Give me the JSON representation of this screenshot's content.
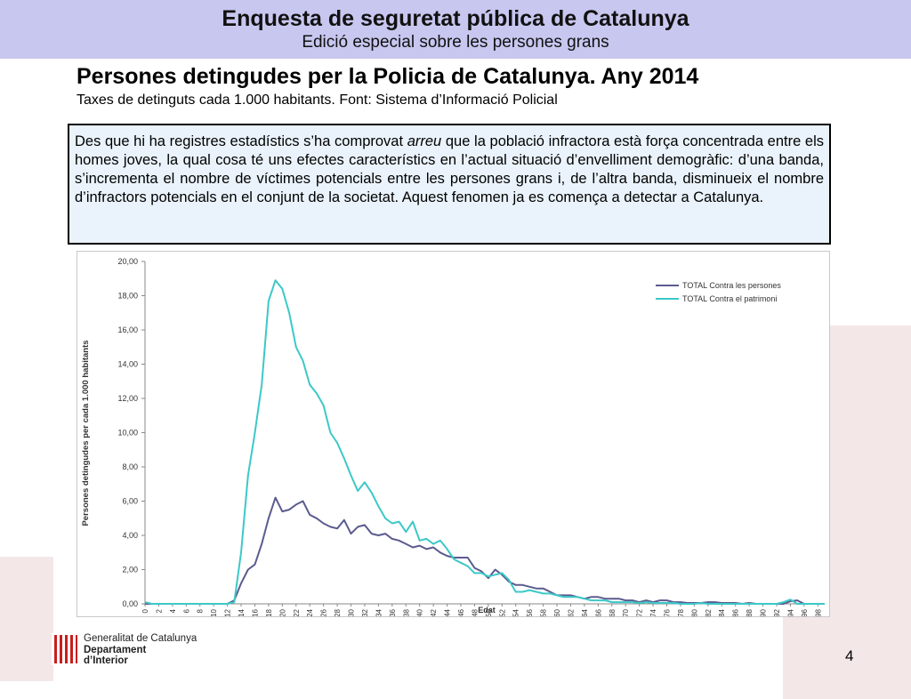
{
  "header": {
    "title": "Enquesta de seguretat pública de Catalunya",
    "subtitle": "Edició especial sobre les persones grans"
  },
  "slide": {
    "title": "Persones detingudes per la Policia de Catalunya. Any 2014",
    "subtitle": "Taxes de detinguts cada 1.000 habitants. Font: Sistema d’Informació Policial",
    "text_before": "Des que hi ha registres estadístics s’ha comprovat ",
    "text_italic": "arreu",
    "text_after": " que la població infractora està força concentrada entre els homes joves, la qual cosa té uns efectes característics en l’actual situació d’envelliment demogràfic: d’una banda, s’incrementa el nombre de víctimes potencials entre les persones grans i, de l’altra banda, disminueix el nombre d’infractors potencials en el conjunt de la societat. Aquest fenomen ja es comença a detectar a Catalunya."
  },
  "footer": {
    "logo_line1": "Generalitat de Catalunya",
    "logo_line2": "Departament",
    "logo_line3": "d’Interior",
    "page_number": "4"
  },
  "colors": {
    "header_bg": "#c7c7f0",
    "textbox_bg": "#eaf3fb",
    "series_persones": "#5b5b8f",
    "series_patrimoni": "#3cc8c8"
  },
  "chart_data": {
    "type": "line",
    "xlabel": "Edat",
    "ylabel": "Persones detingudes per cada 1.000 habitants",
    "ylim": [
      0,
      20
    ],
    "yticks": [
      "0,00",
      "2,00",
      "4,00",
      "6,00",
      "8,00",
      "10,00",
      "12,00",
      "14,00",
      "16,00",
      "18,00",
      "20,00"
    ],
    "xticks": [
      "0",
      "2",
      "4",
      "6",
      "8",
      "10",
      "12",
      "14",
      "16",
      "18",
      "20",
      "22",
      "24",
      "26",
      "28",
      "30",
      "32",
      "34",
      "36",
      "38",
      "40",
      "42",
      "44",
      "46",
      "48",
      "50",
      "52",
      "54",
      "56",
      "58",
      "60",
      "62",
      "64",
      "66",
      "68",
      "70",
      "72",
      "74",
      "76",
      "78",
      "80",
      "82",
      "84",
      "86",
      "88",
      "90",
      "92",
      "94",
      "96",
      "98"
    ],
    "legend_position": "top-right",
    "grid": false,
    "x": [
      0,
      1,
      2,
      3,
      4,
      5,
      6,
      7,
      8,
      9,
      10,
      11,
      12,
      13,
      14,
      15,
      16,
      17,
      18,
      19,
      20,
      21,
      22,
      23,
      24,
      25,
      26,
      27,
      28,
      29,
      30,
      31,
      32,
      33,
      34,
      35,
      36,
      37,
      38,
      39,
      40,
      41,
      42,
      43,
      44,
      45,
      46,
      47,
      48,
      49,
      50,
      51,
      52,
      53,
      54,
      55,
      56,
      57,
      58,
      59,
      60,
      61,
      62,
      63,
      64,
      65,
      66,
      67,
      68,
      69,
      70,
      71,
      72,
      73,
      74,
      75,
      76,
      77,
      78,
      79,
      80,
      81,
      82,
      83,
      84,
      85,
      86,
      87,
      88,
      89,
      90,
      91,
      92,
      93,
      94,
      95,
      96,
      97,
      98,
      99
    ],
    "series": [
      {
        "name": "TOTAL Contra les persones",
        "values": [
          0,
          0,
          0,
          0,
          0,
          0,
          0,
          0,
          0,
          0,
          0,
          0,
          0,
          0.2,
          1.2,
          2.0,
          2.3,
          3.5,
          5.0,
          6.2,
          5.4,
          5.5,
          5.8,
          6.0,
          5.2,
          5.0,
          4.7,
          4.5,
          4.4,
          4.9,
          4.1,
          4.5,
          4.6,
          4.1,
          4.0,
          4.1,
          3.8,
          3.7,
          3.5,
          3.3,
          3.4,
          3.2,
          3.3,
          3.0,
          2.8,
          2.7,
          2.7,
          2.7,
          2.1,
          1.9,
          1.5,
          2.0,
          1.7,
          1.3,
          1.1,
          1.1,
          1.0,
          0.9,
          0.9,
          0.7,
          0.5,
          0.5,
          0.5,
          0.4,
          0.3,
          0.4,
          0.4,
          0.3,
          0.3,
          0.3,
          0.2,
          0.2,
          0.1,
          0.2,
          0.1,
          0.2,
          0.2,
          0.1,
          0.1,
          0.05,
          0.05,
          0.05,
          0.1,
          0.1,
          0.05,
          0.05,
          0.05,
          0,
          0.05,
          0,
          0,
          0,
          0,
          0,
          0.15,
          0.2,
          0,
          0,
          0,
          0
        ]
      },
      {
        "name": "TOTAL Contra el patrimoni",
        "values": [
          0.1,
          0,
          0,
          0,
          0,
          0,
          0,
          0,
          0,
          0,
          0,
          0,
          0,
          0.1,
          3.0,
          7.5,
          10.0,
          12.8,
          17.7,
          18.9,
          18.4,
          17.0,
          15.0,
          14.2,
          12.8,
          12.3,
          11.6,
          10.0,
          9.4,
          8.5,
          7.5,
          6.6,
          7.1,
          6.5,
          5.7,
          5.0,
          4.7,
          4.8,
          4.2,
          4.8,
          3.7,
          3.8,
          3.5,
          3.7,
          3.2,
          2.6,
          2.4,
          2.2,
          1.8,
          1.8,
          1.6,
          1.7,
          1.8,
          1.4,
          0.7,
          0.7,
          0.8,
          0.7,
          0.6,
          0.6,
          0.5,
          0.4,
          0.4,
          0.4,
          0.3,
          0.2,
          0.2,
          0.2,
          0.1,
          0.1,
          0.1,
          0.1,
          0.05,
          0.1,
          0.05,
          0.05,
          0.05,
          0.05,
          0,
          0,
          0,
          0.05,
          0,
          0,
          0,
          0,
          0,
          0,
          0,
          0,
          0,
          0,
          0,
          0.1,
          0.25,
          0,
          0,
          0,
          0,
          0
        ]
      }
    ]
  }
}
